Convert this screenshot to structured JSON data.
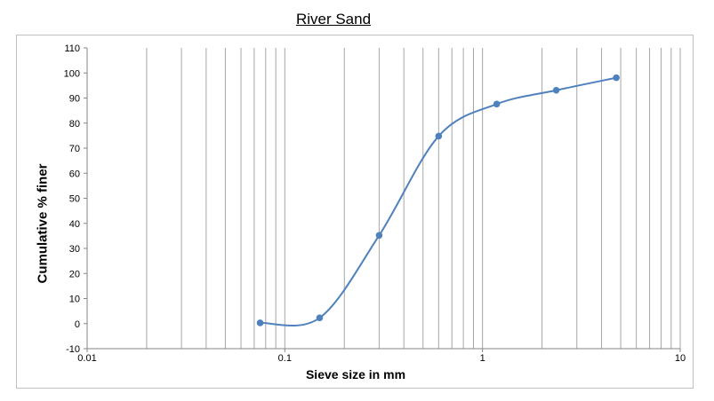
{
  "chart_data": {
    "type": "scatter",
    "title": "River Sand",
    "xlabel": "Sieve  size in mm",
    "ylabel": "Cumulative % finer",
    "x_scale": "log",
    "xlim": [
      0.01,
      10
    ],
    "ylim": [
      -10,
      110
    ],
    "y_ticks": [
      -10,
      0,
      10,
      20,
      30,
      40,
      50,
      60,
      70,
      80,
      90,
      100,
      110
    ],
    "x_ticks": [
      "0.01",
      "0.1",
      "1",
      "10"
    ],
    "grid": "vertical log minor gridlines",
    "legend": "none",
    "smoothed_line": true,
    "series": [
      {
        "color": "#4f81bd",
        "x": [
          0.075,
          0.15,
          0.3,
          0.6,
          1.18,
          2.36,
          4.75
        ],
        "y": [
          0.3,
          2.3,
          35.2,
          74.8,
          87.6,
          93.1,
          98.1
        ]
      }
    ]
  }
}
